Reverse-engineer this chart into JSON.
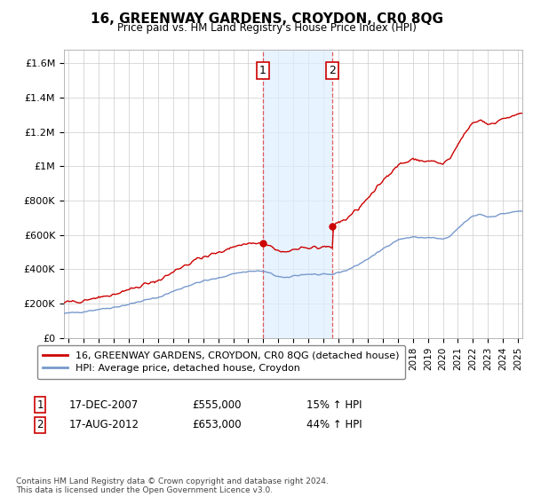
{
  "title": "16, GREENWAY GARDENS, CROYDON, CR0 8QG",
  "subtitle": "Price paid vs. HM Land Registry's House Price Index (HPI)",
  "ylabel_ticks": [
    "£0",
    "£200K",
    "£400K",
    "£600K",
    "£800K",
    "£1M",
    "£1.2M",
    "£1.4M",
    "£1.6M"
  ],
  "ytick_values": [
    0,
    200000,
    400000,
    600000,
    800000,
    1000000,
    1200000,
    1400000,
    1600000
  ],
  "ylim": [
    0,
    1680000
  ],
  "xlim_start": 1994.7,
  "xlim_end": 2025.3,
  "red_line_color": "#cc0000",
  "blue_line_color": "#7799cc",
  "shaded_color": "#ddeeff",
  "marker1_date": 2007.96,
  "marker1_price": 555000,
  "marker1_label": "1",
  "marker2_date": 2012.63,
  "marker2_price": 653000,
  "marker2_label": "2",
  "legend_line1": "16, GREENWAY GARDENS, CROYDON, CR0 8QG (detached house)",
  "legend_line2": "HPI: Average price, detached house, Croydon",
  "footnote": "Contains HM Land Registry data © Crown copyright and database right 2024.\nThis data is licensed under the Open Government Licence v3.0."
}
